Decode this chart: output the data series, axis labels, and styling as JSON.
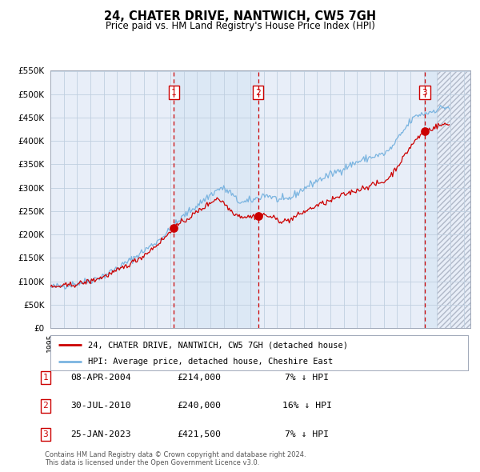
{
  "title": "24, CHATER DRIVE, NANTWICH, CW5 7GH",
  "subtitle": "Price paid vs. HM Land Registry's House Price Index (HPI)",
  "legend_label_red": "24, CHATER DRIVE, NANTWICH, CW5 7GH (detached house)",
  "legend_label_blue": "HPI: Average price, detached house, Cheshire East",
  "footer": "Contains HM Land Registry data © Crown copyright and database right 2024.\nThis data is licensed under the Open Government Licence v3.0.",
  "transactions": [
    {
      "num": 1,
      "date": "08-APR-2004",
      "price": "£214,000",
      "hpi": "7% ↓ HPI"
    },
    {
      "num": 2,
      "date": "30-JUL-2010",
      "price": "£240,000",
      "hpi": "16% ↓ HPI"
    },
    {
      "num": 3,
      "date": "25-JAN-2023",
      "price": "£421,500",
      "hpi": "7% ↓ HPI"
    }
  ],
  "sale_dates_decimal": [
    2004.27,
    2010.58,
    2023.07
  ],
  "sale_prices": [
    214000,
    240000,
    421500
  ],
  "ylim": [
    0,
    550000
  ],
  "ytick_values": [
    0,
    50000,
    100000,
    150000,
    200000,
    250000,
    300000,
    350000,
    400000,
    450000,
    500000,
    550000
  ],
  "xlim_start": 1995.0,
  "xlim_end": 2026.5,
  "bg_color": "#e8eef8",
  "shaded_color": "#dce8f5",
  "hatch_region_x0": 2024.0,
  "hatch_region_x1": 2026.5,
  "vline_color": "#cc0000",
  "grid_color": "#c0cfe0",
  "red_line_color": "#cc0000",
  "blue_line_color": "#7ab4e0",
  "dot_color": "#cc0000",
  "num_box_color": "#cc0000"
}
